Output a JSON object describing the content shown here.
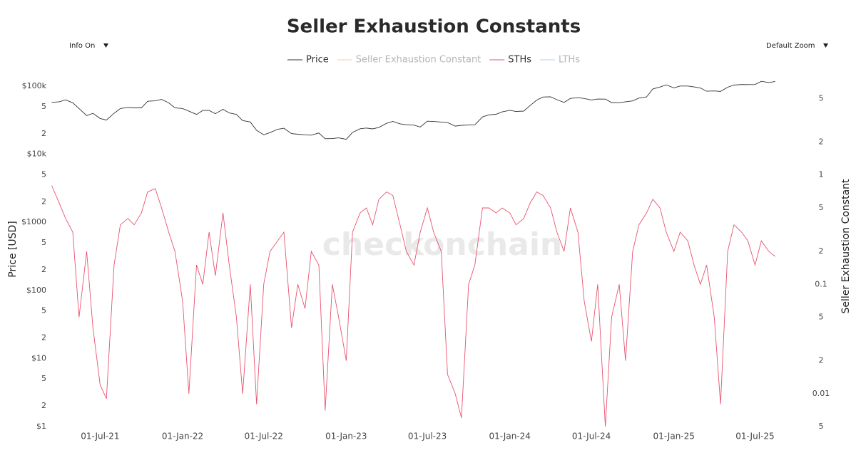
{
  "controls": {
    "info": "Info On",
    "zoom": "Default Zoom"
  },
  "chart_data": {
    "type": "line",
    "title": "Seller Exhaustion Constants",
    "watermark": "checkonchain",
    "y_label": "Price [USD]",
    "y2_label": "Seller Exhaustion Constant",
    "log_y": true,
    "log_y2": true,
    "grid": false,
    "xlim": [
      "2021-03-11",
      "2025-08-17"
    ],
    "xticks": [
      {
        "value": "2021-07-01",
        "label": "01-Jul-21"
      },
      {
        "value": "2022-01-01",
        "label": "01-Jan-22"
      },
      {
        "value": "2022-07-01",
        "label": "01-Jul-22"
      },
      {
        "value": "2023-01-01",
        "label": "01-Jan-23"
      },
      {
        "value": "2023-07-01",
        "label": "01-Jul-23"
      },
      {
        "value": "2024-01-01",
        "label": "01-Jan-24"
      },
      {
        "value": "2024-07-01",
        "label": "01-Jul-24"
      },
      {
        "value": "2025-01-01",
        "label": "01-Jan-25"
      },
      {
        "value": "2025-07-01",
        "label": "01-Jul-25"
      }
    ],
    "ylim": [
      1,
      166000
    ],
    "yticks": [
      {
        "value": 1,
        "label": "$1"
      },
      2,
      5,
      {
        "value": 10,
        "label": "$10"
      },
      {
        "value": 20,
        "label": "2"
      },
      {
        "value": 50,
        "label": "5"
      },
      {
        "value": 100,
        "label": "$100"
      },
      {
        "value": 200,
        "label": "2"
      },
      {
        "value": 500,
        "label": "5"
      },
      {
        "value": 1000,
        "label": "$1000"
      },
      {
        "value": 2000,
        "label": "2"
      },
      {
        "value": 5000,
        "label": "5"
      },
      {
        "value": 10000,
        "label": "$10k"
      },
      {
        "value": 20000,
        "label": "2"
      },
      {
        "value": 50000,
        "label": "5"
      },
      {
        "value": 100000,
        "label": "$100k"
      }
    ],
    "y2lim": [
      0.005,
      8.9
    ],
    "y2ticks": [
      5,
      2,
      1,
      {
        "value": 0.5,
        "label": "5"
      },
      {
        "value": 0.2,
        "label": "2"
      },
      0.1,
      {
        "value": 0.05,
        "label": "5"
      },
      {
        "value": 0.02,
        "label": "2"
      },
      0.01,
      {
        "value": 0.005,
        "label": "5"
      }
    ],
    "x": [
      "2021-03-15",
      "2021-04-01",
      "2021-04-15",
      "2021-05-01",
      "2021-05-15",
      "2021-06-01",
      "2021-06-15",
      "2021-07-01",
      "2021-07-15",
      "2021-08-01",
      "2021-08-15",
      "2021-09-01",
      "2021-09-15",
      "2021-10-01",
      "2021-10-15",
      "2021-11-01",
      "2021-11-15",
      "2021-12-01",
      "2021-12-15",
      "2022-01-01",
      "2022-01-15",
      "2022-02-01",
      "2022-02-15",
      "2022-03-01",
      "2022-03-15",
      "2022-04-01",
      "2022-04-15",
      "2022-05-01",
      "2022-05-15",
      "2022-06-01",
      "2022-06-15",
      "2022-07-01",
      "2022-07-15",
      "2022-08-01",
      "2022-08-15",
      "2022-09-01",
      "2022-09-15",
      "2022-10-01",
      "2022-10-15",
      "2022-11-01",
      "2022-11-15",
      "2022-12-01",
      "2022-12-15",
      "2023-01-01",
      "2023-01-15",
      "2023-02-01",
      "2023-02-15",
      "2023-03-01",
      "2023-03-15",
      "2023-04-01",
      "2023-04-15",
      "2023-05-01",
      "2023-05-15",
      "2023-06-01",
      "2023-06-15",
      "2023-07-01",
      "2023-07-15",
      "2023-08-01",
      "2023-08-15",
      "2023-09-01",
      "2023-09-15",
      "2023-10-01",
      "2023-10-15",
      "2023-11-01",
      "2023-11-15",
      "2023-12-01",
      "2023-12-15",
      "2024-01-01",
      "2024-01-15",
      "2024-02-01",
      "2024-02-15",
      "2024-03-01",
      "2024-03-15",
      "2024-04-01",
      "2024-04-15",
      "2024-05-01",
      "2024-05-15",
      "2024-06-01",
      "2024-06-15",
      "2024-07-01",
      "2024-07-15",
      "2024-08-01",
      "2024-08-15",
      "2024-09-01",
      "2024-09-15",
      "2024-10-01",
      "2024-10-15",
      "2024-11-01",
      "2024-11-15",
      "2024-12-01",
      "2024-12-15",
      "2025-01-01",
      "2025-01-15",
      "2025-02-01",
      "2025-02-15",
      "2025-03-01",
      "2025-03-15",
      "2025-04-01",
      "2025-04-15",
      "2025-05-01",
      "2025-05-15",
      "2025-06-01",
      "2025-06-15",
      "2025-07-01",
      "2025-07-15",
      "2025-08-01",
      "2025-08-15"
    ],
    "series": [
      {
        "name": "Price",
        "color": "#333333",
        "axis": "y",
        "values": [
          58000,
          59000,
          63000,
          57000,
          47000,
          37000,
          40000,
          33500,
          31800,
          40000,
          47000,
          48800,
          48000,
          48000,
          60000,
          61000,
          64000,
          57000,
          48000,
          47000,
          43000,
          38500,
          44000,
          44000,
          39500,
          45800,
          40500,
          38500,
          31300,
          29800,
          22500,
          19300,
          20800,
          23300,
          24100,
          20100,
          19700,
          19300,
          19100,
          20500,
          16900,
          17000,
          17400,
          16600,
          20900,
          23700,
          24300,
          23600,
          24800,
          28500,
          30400,
          28000,
          27200,
          26800,
          25100,
          30600,
          30300,
          29700,
          29200,
          25900,
          26600,
          27000,
          27100,
          35400,
          37900,
          38700,
          42000,
          44200,
          42500,
          43100,
          51800,
          62400,
          69400,
          69700,
          63400,
          57800,
          66200,
          67700,
          66000,
          62700,
          64700,
          64600,
          57500,
          57300,
          59100,
          60800,
          67000,
          69500,
          91100,
          97200,
          104500,
          94400,
          100500,
          100600,
          97500,
          94200,
          84300,
          85200,
          83700,
          96500,
          103700,
          105700,
          105500,
          105700,
          117800,
          113200,
          117400
        ]
      },
      {
        "name": "STHs",
        "color": "#e8536f",
        "axis": "y2",
        "values": [
          0.8,
          0.55,
          0.4,
          0.3,
          0.05,
          0.2,
          0.04,
          0.012,
          0.009,
          0.15,
          0.35,
          0.4,
          0.35,
          0.45,
          0.7,
          0.75,
          0.5,
          0.3,
          0.2,
          0.07,
          0.01,
          0.15,
          0.1,
          0.3,
          0.12,
          0.45,
          0.15,
          0.05,
          0.01,
          0.1,
          0.008,
          0.1,
          0.2,
          0.25,
          0.3,
          0.04,
          0.1,
          0.06,
          0.2,
          0.15,
          0.007,
          0.1,
          0.05,
          0.02,
          0.3,
          0.45,
          0.5,
          0.35,
          0.6,
          0.7,
          0.65,
          0.35,
          0.2,
          0.15,
          0.3,
          0.5,
          0.3,
          0.2,
          0.015,
          0.01,
          0.006,
          0.1,
          0.15,
          0.5,
          0.5,
          0.45,
          0.5,
          0.45,
          0.35,
          0.4,
          0.55,
          0.7,
          0.65,
          0.5,
          0.3,
          0.2,
          0.5,
          0.3,
          0.07,
          0.03,
          0.1,
          0.005,
          0.05,
          0.1,
          0.02,
          0.2,
          0.35,
          0.45,
          0.6,
          0.5,
          0.3,
          0.2,
          0.3,
          0.25,
          0.15,
          0.1,
          0.15,
          0.05,
          0.008,
          0.2,
          0.35,
          0.3,
          0.25,
          0.15,
          0.25,
          0.2,
          0.18
        ]
      }
    ],
    "legend_hidden": [
      {
        "name": "Seller Exhaustion Constant",
        "color": "#f2d3a8"
      },
      {
        "name": "LTHs",
        "color": "#b9cde8"
      }
    ]
  }
}
